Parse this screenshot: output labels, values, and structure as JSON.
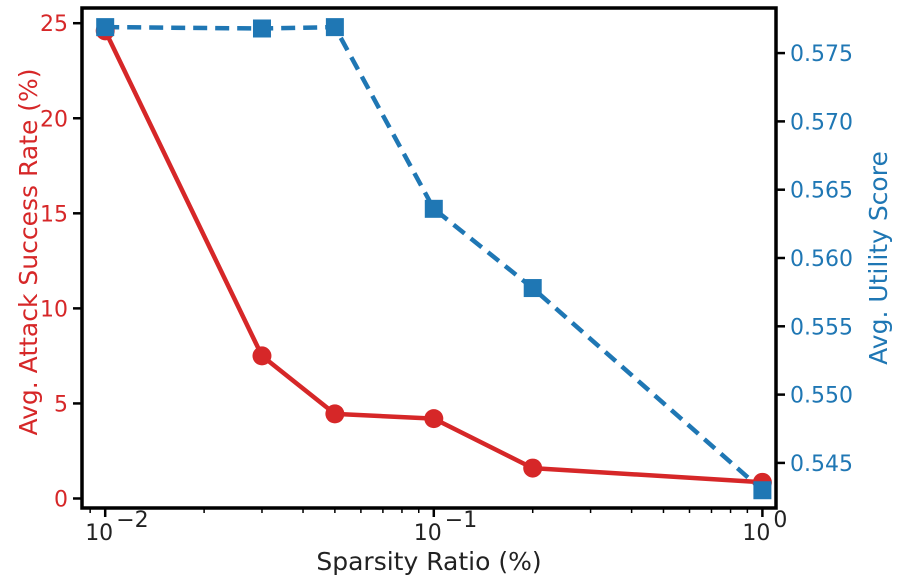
{
  "chart_data": {
    "type": "line",
    "xlabel": "Sparsity Ratio (%)",
    "xscale": "log",
    "xlim": [
      0.0085,
      1.1
    ],
    "x_ticks": [
      {
        "value": 0.01,
        "base": "10",
        "exp": "−2"
      },
      {
        "value": 0.1,
        "base": "10",
        "exp": "−1"
      },
      {
        "value": 1,
        "base": "10",
        "exp": "0"
      }
    ],
    "left_axis": {
      "label": "Avg. Attack Success Rate (%)",
      "color": "#d62728",
      "ylim": [
        -0.5,
        25.8
      ],
      "ticks": [
        "0",
        "5",
        "10",
        "15",
        "20",
        "25"
      ]
    },
    "right_axis": {
      "label": "Avg. Utility Score",
      "color": "#1f77b4",
      "ylim": [
        0.5417,
        0.5783
      ],
      "ticks": [
        "0.545",
        "0.550",
        "0.555",
        "0.560",
        "0.565",
        "0.570",
        "0.575"
      ]
    },
    "series": [
      {
        "name": "Avg. Attack Success Rate (%)",
        "axis": "left",
        "color": "#d62728",
        "line_style": "solid",
        "marker": "circle",
        "x": [
          0.01,
          0.03,
          0.05,
          0.1,
          0.2,
          1
        ],
        "values": [
          24.6,
          7.5,
          4.45,
          4.2,
          1.6,
          0.85
        ]
      },
      {
        "name": "Avg. Utility Score",
        "axis": "right",
        "color": "#1f77b4",
        "line_style": "dashed",
        "marker": "square",
        "x": [
          0.01,
          0.03,
          0.05,
          0.1,
          0.2,
          1
        ],
        "values": [
          0.5769,
          0.5768,
          0.5769,
          0.5636,
          0.5578,
          0.543
        ]
      }
    ]
  }
}
